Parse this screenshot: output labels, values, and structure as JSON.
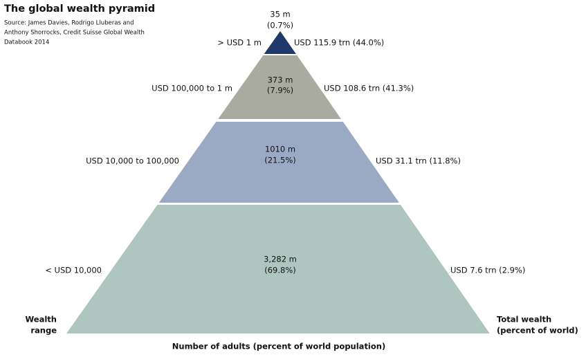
{
  "header": {
    "title": "The global wealth pyramid",
    "source": [
      "Source: James Davies, Rodrigo Lluberas and",
      "Anthony Shorrocks, Credit Suisse Global Wealth",
      "Databook 2014"
    ]
  },
  "layers": [
    {
      "wealth_range": "> USD 1 m",
      "adults": "35 m",
      "share": "(0.7%)",
      "total_wealth": "USD 115.9 trn (44.0%)"
    },
    {
      "wealth_range": "USD 100,000 to 1 m",
      "adults": "373 m",
      "share": "(7.9%)",
      "total_wealth": "USD 108.6 trn (41.3%)"
    },
    {
      "wealth_range": "USD 10,000 to 100,000",
      "adults": "1010 m",
      "share": "(21.5%)",
      "total_wealth": "USD 31.1 trn (11.8%)"
    },
    {
      "wealth_range": "< USD 10,000",
      "adults": "3,282 m",
      "share": "(69.8%)",
      "total_wealth": "USD 7.6 trn (2.9%)"
    }
  ],
  "left_heading": [
    "Wealth",
    "range"
  ],
  "right_heading": [
    "Total wealth",
    "(percent of world)"
  ],
  "footer": "Number of adults (percent of world population)"
}
